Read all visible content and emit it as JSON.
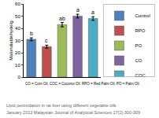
{
  "chart_data": {
    "type": "bar",
    "y_label": "Malondialdehyde/g",
    "categories": [
      "Control",
      "RPO",
      "PO",
      "CO",
      "COC"
    ],
    "values": [
      31,
      25,
      43,
      50,
      48
    ],
    "errors": [
      1.2,
      1.2,
      1.8,
      1.5,
      1.5
    ],
    "annotations": [
      "b",
      "c",
      "ab",
      "a",
      "a"
    ],
    "colors": [
      "#4f81bd",
      "#c0504d",
      "#9bbb59",
      "#8064a2",
      "#4bacc6"
    ],
    "ylim": [
      0,
      60
    ],
    "yticks": [
      0,
      10,
      20,
      30,
      40,
      50,
      60
    ],
    "legend": "right",
    "tick_labels": "y",
    "caption": "CO = Corn Oil. COC = Coconut Oil. RPO = Red Palm Oil. PO = Palm Oil.",
    "source": [
      "Lipid peroxidation in rat liver using different vegetable oils",
      "January 2013 Malaysian Journal of Analytical Sciences 17(2):300-309"
    ]
  }
}
